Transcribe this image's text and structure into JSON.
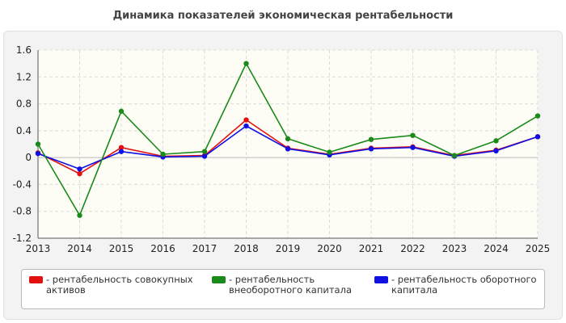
{
  "chart_data": {
    "type": "line",
    "title": "Динамика показателей экономическая рентабельности",
    "x": [
      "2013",
      "2014",
      "2015",
      "2016",
      "2017",
      "2018",
      "2019",
      "2020",
      "2021",
      "2022",
      "2023",
      "2024",
      "2025"
    ],
    "yticks": [
      "1.6",
      "1.2",
      "0.8",
      "0.4",
      "0",
      "-0.4",
      "-0.8",
      "-1.2"
    ],
    "ylim": [
      -1.2,
      1.6
    ],
    "grid": true,
    "legend_position": "bottom",
    "series": [
      {
        "name": "- рентабельность совокупных активов",
        "color": "#e31010",
        "values": [
          0.07,
          -0.24,
          0.15,
          0.02,
          0.03,
          0.56,
          0.14,
          0.05,
          0.14,
          0.16,
          0.03,
          0.11,
          0.31
        ]
      },
      {
        "name": "- рентабельность внеоборотного капитала",
        "color": "#1a8a1a",
        "values": [
          0.2,
          -0.86,
          0.69,
          0.05,
          0.09,
          1.4,
          0.28,
          0.08,
          0.27,
          0.33,
          0.03,
          0.25,
          0.62
        ]
      },
      {
        "name": "- рентабельность оборотного капитала",
        "color": "#1010e3",
        "values": [
          0.06,
          -0.17,
          0.09,
          0.01,
          0.02,
          0.47,
          0.13,
          0.04,
          0.13,
          0.15,
          0.02,
          0.1,
          0.31
        ]
      }
    ]
  }
}
